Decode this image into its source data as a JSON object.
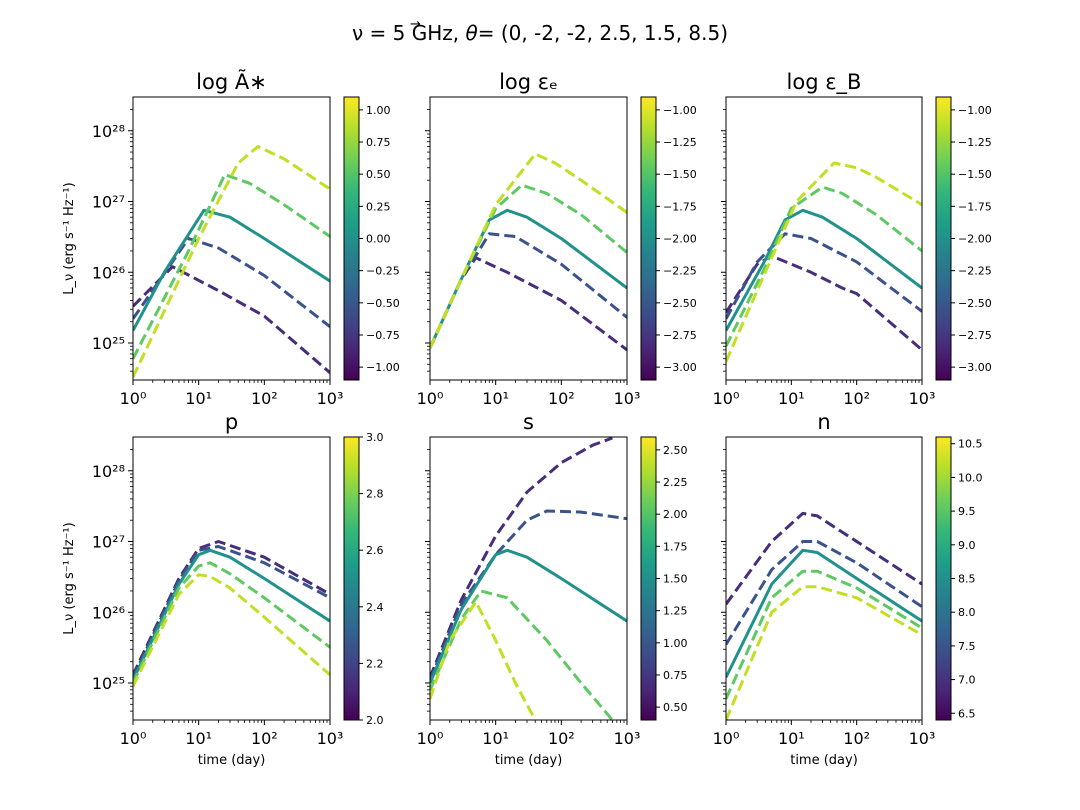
{
  "figure": {
    "title": "ν = 5 GHz,  θ⃗ = (0, -2, -2, 2.5, 1.5, 8.5)",
    "title_parts": [
      "ν = 5 GHz,  ",
      "θ",
      "= (0, -2, -2, 2.5, 1.5, 8.5)"
    ]
  },
  "colors": {
    "viridis": [
      "#440154",
      "#482878",
      "#3e4a89",
      "#31688e",
      "#26828e",
      "#1f9e89",
      "#35b779",
      "#6ece58",
      "#b5de2b",
      "#fde725"
    ],
    "series": [
      "#472d7b",
      "#3b528b",
      "#21918c",
      "#5ec962",
      "#c2df23"
    ]
  },
  "chart_data": [
    {
      "type": "line",
      "panel": "logA",
      "title": "log Ã∗",
      "xlabel": "",
      "ylabel": "L_ν (erg s⁻¹ Hz⁻¹)",
      "xscale": "log",
      "yscale": "log",
      "xlim": [
        1,
        1000
      ],
      "ylim": [
        3e+24,
        3e+28
      ],
      "xticks": [
        "10⁰",
        "10¹",
        "10²",
        "10³"
      ],
      "yticks": [
        "10²⁵",
        "10²⁶",
        "10²⁷",
        "10²⁸"
      ],
      "colorbar": {
        "range": [
          -1.1,
          1.1
        ],
        "ticks": [
          "1.00",
          "0.75",
          "0.50",
          "0.25",
          "0.00",
          "−0.25",
          "−0.50",
          "−0.75",
          "−1.00"
        ],
        "tick_values": [
          1.0,
          0.75,
          0.5,
          0.25,
          0.0,
          -0.25,
          -0.5,
          -0.75,
          -1.0
        ]
      },
      "series": [
        {
          "name": "−1.00",
          "dashed": true,
          "x": [
            1,
            4,
            20,
            100,
            1000
          ],
          "y": [
            3.3e+25,
            1.2e+26,
            5.5e+25,
            2.4e+25,
            3.8e+24
          ]
        },
        {
          "name": "−0.50",
          "dashed": true,
          "x": [
            1,
            7,
            20,
            100,
            1000
          ],
          "y": [
            2.2e+25,
            3e+26,
            2.2e+26,
            9e+25,
            1.7e+25
          ]
        },
        {
          "name": "0.00",
          "dashed": false,
          "x": [
            1,
            3,
            12,
            30,
            100,
            1000
          ],
          "y": [
            1.5e+25,
            1e+26,
            7.5e+26,
            6e+26,
            3e+26,
            7.5e+25
          ]
        },
        {
          "name": "0.50",
          "dashed": true,
          "x": [
            1,
            7,
            25,
            60,
            200,
            1000
          ],
          "y": [
            6e+24,
            2e+26,
            2.4e+27,
            1.8e+27,
            9e+26,
            3.2e+26
          ]
        },
        {
          "name": "1.00",
          "dashed": true,
          "x": [
            1,
            10,
            40,
            80,
            200,
            1000
          ],
          "y": [
            3.3e+24,
            3e+26,
            3.5e+27,
            6e+27,
            4e+27,
            1.5e+27
          ]
        }
      ]
    },
    {
      "type": "line",
      "panel": "logEpsE",
      "title": "log εₑ",
      "xlabel": "",
      "ylabel": "",
      "xscale": "log",
      "yscale": "log",
      "xlim": [
        1,
        1000
      ],
      "ylim": [
        3e+24,
        3e+28
      ],
      "xticks": [
        "10⁰",
        "10¹",
        "10²",
        "10³"
      ],
      "yticks": [],
      "colorbar": {
        "range": [
          -3.1,
          -0.9
        ],
        "ticks": [
          "−1.00",
          "−1.25",
          "−1.50",
          "−1.75",
          "−2.00",
          "−2.25",
          "−2.50",
          "−2.75",
          "−3.00"
        ],
        "tick_values": [
          -1.0,
          -1.25,
          -1.5,
          -1.75,
          -2.0,
          -2.25,
          -2.5,
          -2.75,
          -3.0
        ]
      },
      "series": [
        {
          "name": "−3.00",
          "dashed": true,
          "x": [
            1,
            3,
            5,
            15,
            100,
            1000
          ],
          "y": [
            8.5e+24,
            8e+25,
            1.6e+26,
            1e+26,
            4e+25,
            8e+24
          ]
        },
        {
          "name": "−2.50",
          "dashed": true,
          "x": [
            1,
            3,
            8,
            20,
            100,
            1000
          ],
          "y": [
            8.5e+24,
            8e+25,
            3.5e+26,
            3.2e+26,
            1.3e+26,
            2.3e+25
          ]
        },
        {
          "name": "−2.00",
          "dashed": false,
          "x": [
            1,
            3,
            8,
            15,
            30,
            100,
            1000
          ],
          "y": [
            8.5e+24,
            8e+25,
            5.5e+26,
            7.5e+26,
            6e+26,
            3e+26,
            6e+25
          ]
        },
        {
          "name": "−1.50",
          "dashed": true,
          "x": [
            1,
            3,
            10,
            25,
            60,
            200,
            1000
          ],
          "y": [
            8.5e+24,
            8e+25,
            8e+26,
            1.7e+27,
            1.3e+27,
            6.5e+26,
            1.9e+26
          ]
        },
        {
          "name": "−1.00",
          "dashed": true,
          "x": [
            1,
            3,
            10,
            40,
            80,
            200,
            1000
          ],
          "y": [
            8.5e+24,
            8e+25,
            9e+26,
            4.7e+27,
            3.5e+27,
            2e+27,
            7e+26
          ]
        }
      ]
    },
    {
      "type": "line",
      "panel": "logEpsB",
      "title": "log ε_B",
      "xlabel": "",
      "ylabel": "",
      "xscale": "log",
      "yscale": "log",
      "xlim": [
        1,
        1000
      ],
      "ylim": [
        3e+24,
        3e+28
      ],
      "xticks": [
        "10⁰",
        "10¹",
        "10²",
        "10³"
      ],
      "yticks": [],
      "colorbar": {
        "range": [
          -3.1,
          -0.9
        ],
        "ticks": [
          "−1.00",
          "−1.25",
          "−1.50",
          "−1.75",
          "−2.00",
          "−2.25",
          "−2.50",
          "−2.75",
          "−3.00"
        ],
        "tick_values": [
          -1.0,
          -1.25,
          -1.5,
          -1.75,
          -2.0,
          -2.25,
          -2.5,
          -2.75,
          -3.0
        ]
      },
      "series": [
        {
          "name": "−3.00",
          "dashed": true,
          "x": [
            1,
            3,
            5,
            20,
            60,
            100,
            1000
          ],
          "y": [
            2.7e+25,
            1.3e+26,
            1.7e+26,
            1e+26,
            6e+25,
            5e+25,
            8e+24
          ]
        },
        {
          "name": "−2.50",
          "dashed": true,
          "x": [
            1,
            3,
            8,
            20,
            100,
            1000
          ],
          "y": [
            2.2e+25,
            1.4e+26,
            3.5e+26,
            3e+26,
            1.4e+26,
            2.8e+25
          ]
        },
        {
          "name": "−2.00",
          "dashed": false,
          "x": [
            1,
            4,
            8,
            15,
            30,
            100,
            1000
          ],
          "y": [
            1.5e+25,
            1.5e+26,
            5.5e+26,
            7.5e+26,
            6e+26,
            3e+26,
            6e+25
          ]
        },
        {
          "name": "−1.50",
          "dashed": true,
          "x": [
            1,
            4,
            10,
            30,
            60,
            200,
            1000
          ],
          "y": [
            9e+24,
            1.2e+26,
            8e+26,
            1.6e+27,
            1.3e+27,
            6.5e+26,
            2e+26
          ]
        },
        {
          "name": "−1.00",
          "dashed": true,
          "x": [
            1,
            4,
            12,
            45,
            100,
            200,
            1000
          ],
          "y": [
            5.5e+24,
            1e+26,
            1e+27,
            3.5e+27,
            3e+27,
            2.2e+27,
            9e+26
          ]
        }
      ]
    },
    {
      "type": "line",
      "panel": "p",
      "title": "p",
      "xlabel": "time (day)",
      "ylabel": "L_ν (erg s⁻¹ Hz⁻¹)",
      "xscale": "log",
      "yscale": "log",
      "xlim": [
        1,
        1000
      ],
      "ylim": [
        3e+24,
        3e+28
      ],
      "xticks": [
        "10⁰",
        "10¹",
        "10²",
        "10³"
      ],
      "yticks": [
        "10²⁵",
        "10²⁶",
        "10²⁷",
        "10²⁸"
      ],
      "colorbar": {
        "range": [
          2.0,
          3.0
        ],
        "ticks": [
          "3.0",
          "2.8",
          "2.6",
          "2.4",
          "2.2",
          "2.0"
        ],
        "tick_values": [
          3.0,
          2.8,
          2.6,
          2.4,
          2.2,
          2.0
        ]
      },
      "series": [
        {
          "name": "2.10",
          "dashed": true,
          "x": [
            1,
            5,
            10,
            20,
            100,
            1000
          ],
          "y": [
            1.3e+25,
            3e+26,
            8e+26,
            1e+27,
            6e+26,
            1.8e+26
          ]
        },
        {
          "name": "2.25",
          "dashed": true,
          "x": [
            1,
            5,
            10,
            20,
            100,
            1000
          ],
          "y": [
            1.2e+25,
            2.8e+26,
            7.5e+26,
            8.5e+26,
            5e+26,
            1.6e+26
          ]
        },
        {
          "name": "2.50",
          "dashed": false,
          "x": [
            1,
            5,
            10,
            15,
            30,
            100,
            1000
          ],
          "y": [
            1.1e+25,
            2.5e+26,
            6.5e+26,
            7.5e+26,
            6e+26,
            3e+26,
            7.5e+25
          ]
        },
        {
          "name": "2.75",
          "dashed": true,
          "x": [
            1,
            5,
            10,
            15,
            30,
            100,
            1000
          ],
          "y": [
            1e+25,
            2.2e+26,
            4.5e+26,
            5e+26,
            3.5e+26,
            1.6e+26,
            3.2e+25
          ]
        },
        {
          "name": "2.90",
          "dashed": true,
          "x": [
            1,
            5,
            10,
            15,
            30,
            100,
            1000
          ],
          "y": [
            9e+24,
            1.8e+26,
            3.4e+26,
            3.2e+26,
            2.2e+26,
            8.5e+25,
            1.3e+25
          ]
        }
      ]
    },
    {
      "type": "line",
      "panel": "s",
      "title": "s",
      "xlabel": "time (day)",
      "ylabel": "",
      "xscale": "log",
      "yscale": "log",
      "xlim": [
        1,
        1000
      ],
      "ylim": [
        3e+24,
        3e+28
      ],
      "xticks": [
        "10⁰",
        "10¹",
        "10²",
        "10³"
      ],
      "yticks": [],
      "colorbar": {
        "range": [
          0.4,
          2.6
        ],
        "ticks": [
          "2.50",
          "2.25",
          "2.00",
          "1.75",
          "1.50",
          "1.25",
          "1.00",
          "0.75",
          "0.50"
        ],
        "tick_values": [
          2.5,
          2.25,
          2.0,
          1.75,
          1.5,
          1.25,
          1.0,
          0.75,
          0.5
        ]
      },
      "series": [
        {
          "name": "0.50",
          "dashed": true,
          "x": [
            1,
            3,
            10,
            30,
            100,
            300,
            600
          ],
          "y": [
            1.2e+25,
            1.5e+26,
            1.2e+27,
            5e+27,
            1.3e+28,
            2.3e+28,
            2.9e+28
          ]
        },
        {
          "name": "1.00",
          "dashed": true,
          "x": [
            1,
            3,
            10,
            30,
            60,
            200,
            1000
          ],
          "y": [
            1.1e+25,
            1.3e+26,
            6.5e+26,
            2e+27,
            2.7e+27,
            2.6e+27,
            2.1e+27
          ]
        },
        {
          "name": "1.50",
          "dashed": false,
          "x": [
            1,
            3,
            10,
            15,
            30,
            100,
            1000
          ],
          "y": [
            1e+25,
            1.1e+26,
            6.5e+26,
            7.5e+26,
            6e+26,
            3e+26,
            7.5e+25
          ]
        },
        {
          "name": "2.00",
          "dashed": true,
          "x": [
            1,
            3,
            6,
            15,
            60,
            200,
            600
          ],
          "y": [
            8e+24,
            8e+25,
            2e+26,
            1.6e+26,
            4e+25,
            1e+25,
            3e+24
          ]
        },
        {
          "name": "2.50",
          "dashed": true,
          "x": [
            1,
            2,
            5,
            10,
            20,
            40
          ],
          "y": [
            6e+24,
            4e+25,
            1.4e+26,
            4e+25,
            1e+25,
            3e+24
          ]
        }
      ]
    },
    {
      "type": "line",
      "panel": "n",
      "title": "n",
      "xlabel": "time (day)",
      "ylabel": "",
      "xscale": "log",
      "yscale": "log",
      "xlim": [
        1,
        1000
      ],
      "ylim": [
        3e+24,
        3e+28
      ],
      "xticks": [
        "10⁰",
        "10¹",
        "10²",
        "10³"
      ],
      "yticks": [],
      "colorbar": {
        "range": [
          6.4,
          10.6
        ],
        "ticks": [
          "10.5",
          "10.0",
          "9.5",
          "9.0",
          "8.5",
          "8.0",
          "7.5",
          "7.0",
          "6.5"
        ],
        "tick_values": [
          10.5,
          10.0,
          9.5,
          9.0,
          8.5,
          8.0,
          7.5,
          7.0,
          6.5
        ]
      },
      "series": [
        {
          "name": "7.0",
          "dashed": true,
          "x": [
            1,
            5,
            15,
            25,
            100,
            1000
          ],
          "y": [
            1.3e+26,
            1e+27,
            2.5e+27,
            2.3e+27,
            1e+27,
            2.5e+26
          ]
        },
        {
          "name": "7.8",
          "dashed": true,
          "x": [
            1,
            5,
            15,
            25,
            100,
            1000
          ],
          "y": [
            3.5e+25,
            4e+26,
            1e+27,
            1e+27,
            5e+26,
            1.2e+26
          ]
        },
        {
          "name": "8.5",
          "dashed": false,
          "x": [
            1,
            5,
            15,
            25,
            100,
            1000
          ],
          "y": [
            1.2e+25,
            2.5e+26,
            7.5e+26,
            7e+26,
            3e+26,
            7.5e+25
          ]
        },
        {
          "name": "9.5",
          "dashed": true,
          "x": [
            1,
            5,
            15,
            25,
            100,
            1000
          ],
          "y": [
            6e+24,
            1.6e+26,
            3.8e+26,
            3.8e+26,
            2.2e+26,
            6e+25
          ]
        },
        {
          "name": "10.3",
          "dashed": true,
          "x": [
            1,
            5,
            15,
            25,
            100,
            1000
          ],
          "y": [
            3e+24,
            1e+26,
            2.3e+26,
            2.3e+26,
            1.6e+26,
            4.8e+25
          ]
        }
      ]
    }
  ]
}
